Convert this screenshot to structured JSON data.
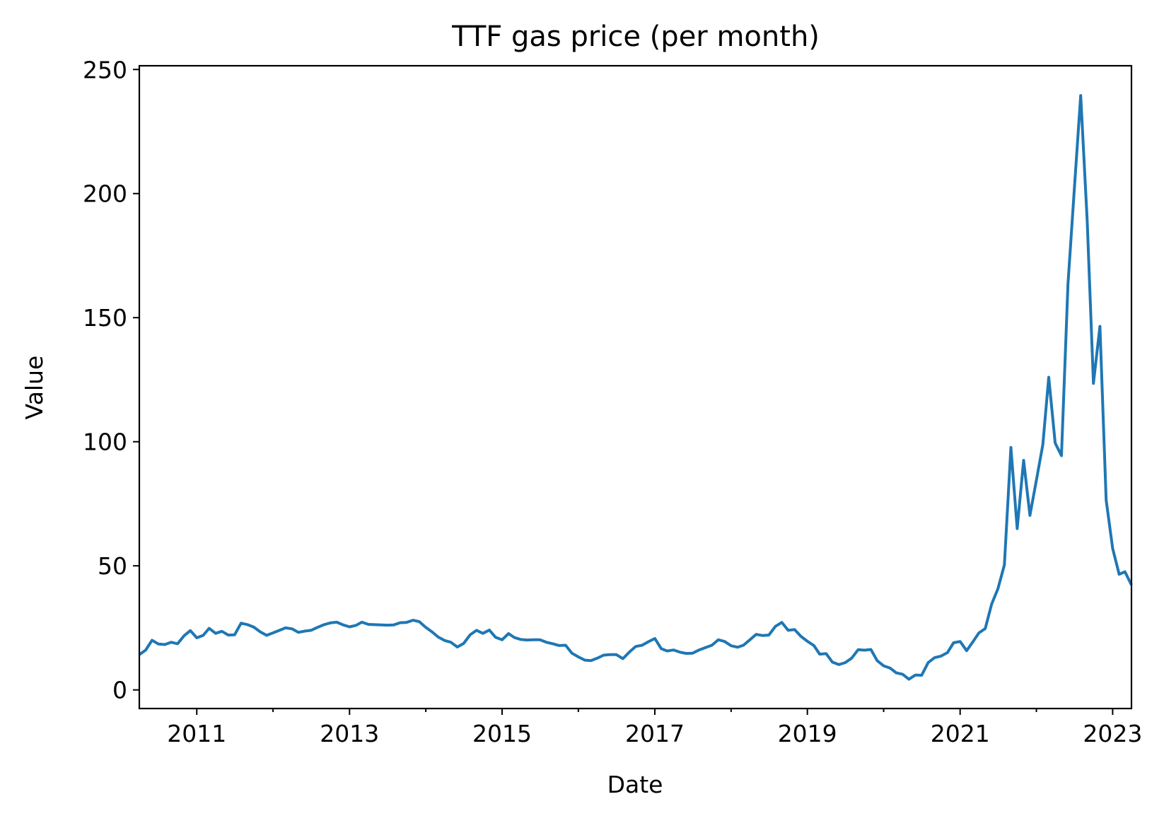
{
  "chart_data": {
    "type": "line",
    "title": "TTF gas price (per month)",
    "xlabel": "Date",
    "ylabel": "Value",
    "ylim": [
      -7.5,
      251.5
    ],
    "xlim": [
      "2010-04-01",
      "2023-04-01"
    ],
    "y_ticks": [
      0,
      50,
      100,
      150,
      200,
      250
    ],
    "x_ticks": [
      "2011",
      "2013",
      "2015",
      "2017",
      "2019",
      "2021",
      "2023"
    ],
    "grid": false,
    "legend": "none",
    "colors": {
      "line": "#1f77b4",
      "axes": "#000000",
      "background": "#ffffff"
    },
    "series": [
      {
        "x": [
          "2010-04-01",
          "2010-05-01",
          "2010-06-01",
          "2010-07-01",
          "2010-08-01",
          "2010-09-01",
          "2010-10-01",
          "2010-11-01",
          "2010-12-01",
          "2011-01-01",
          "2011-02-01",
          "2011-03-01",
          "2011-04-01",
          "2011-05-01",
          "2011-06-01",
          "2011-07-01",
          "2011-08-01",
          "2011-09-01",
          "2011-10-01",
          "2011-11-01",
          "2011-12-01",
          "2012-01-01",
          "2012-02-01",
          "2012-03-01",
          "2012-04-01",
          "2012-05-01",
          "2012-06-01",
          "2012-07-01",
          "2012-08-01",
          "2012-09-01",
          "2012-10-01",
          "2012-11-01",
          "2012-12-01",
          "2013-01-01",
          "2013-02-01",
          "2013-03-01",
          "2013-04-01",
          "2013-05-01",
          "2013-06-01",
          "2013-07-01",
          "2013-08-01",
          "2013-09-01",
          "2013-10-01",
          "2013-11-01",
          "2013-12-01",
          "2014-01-01",
          "2014-02-01",
          "2014-03-01",
          "2014-04-01",
          "2014-05-01",
          "2014-06-01",
          "2014-07-01",
          "2014-08-01",
          "2014-09-01",
          "2014-10-01",
          "2014-11-01",
          "2014-12-01",
          "2015-01-01",
          "2015-02-01",
          "2015-03-01",
          "2015-04-01",
          "2015-05-01",
          "2015-06-01",
          "2015-07-01",
          "2015-08-01",
          "2015-09-01",
          "2015-10-01",
          "2015-11-01",
          "2015-12-01",
          "2016-01-01",
          "2016-02-01",
          "2016-03-01",
          "2016-04-01",
          "2016-05-01",
          "2016-06-01",
          "2016-07-01",
          "2016-08-01",
          "2016-09-01",
          "2016-10-01",
          "2016-11-01",
          "2016-12-01",
          "2017-01-01",
          "2017-02-01",
          "2017-03-01",
          "2017-04-01",
          "2017-05-01",
          "2017-06-01",
          "2017-07-01",
          "2017-08-01",
          "2017-09-01",
          "2017-10-01",
          "2017-11-01",
          "2017-12-01",
          "2018-01-01",
          "2018-02-01",
          "2018-03-01",
          "2018-04-01",
          "2018-05-01",
          "2018-06-01",
          "2018-07-01",
          "2018-08-01",
          "2018-09-01",
          "2018-10-01",
          "2018-11-01",
          "2018-12-01",
          "2019-01-01",
          "2019-02-01",
          "2019-03-01",
          "2019-04-01",
          "2019-05-01",
          "2019-06-01",
          "2019-07-01",
          "2019-08-01",
          "2019-09-01",
          "2019-10-01",
          "2019-11-01",
          "2019-12-01",
          "2020-01-01",
          "2020-02-01",
          "2020-03-01",
          "2020-04-01",
          "2020-05-01",
          "2020-06-01",
          "2020-07-01",
          "2020-08-01",
          "2020-09-01",
          "2020-10-01",
          "2020-11-01",
          "2020-12-01",
          "2021-01-01",
          "2021-02-01",
          "2021-03-01",
          "2021-04-01",
          "2021-05-01",
          "2021-06-01",
          "2021-07-01",
          "2021-08-01",
          "2021-09-01",
          "2021-10-01",
          "2021-11-01",
          "2021-12-01",
          "2022-01-01",
          "2022-02-01",
          "2022-03-01",
          "2022-04-01",
          "2022-05-01",
          "2022-06-01",
          "2022-07-01",
          "2022-08-01",
          "2022-09-01",
          "2022-10-01",
          "2022-11-01",
          "2022-12-01",
          "2023-01-01",
          "2023-02-01",
          "2023-03-01",
          "2023-04-01"
        ],
        "y": [
          14.2,
          16.0,
          20.0,
          18.5,
          18.3,
          19.2,
          18.6,
          21.8,
          23.9,
          21.0,
          22.0,
          24.8,
          22.8,
          23.6,
          22.1,
          22.2,
          26.9,
          26.3,
          25.3,
          23.4,
          22.0,
          23.0,
          24.0,
          25.0,
          24.6,
          23.2,
          23.7,
          24.0,
          25.2,
          26.3,
          27.0,
          27.3,
          26.2,
          25.4,
          26.0,
          27.3,
          26.4,
          26.3,
          26.2,
          26.1,
          26.2,
          27.1,
          27.2,
          28.1,
          27.5,
          25.2,
          23.3,
          21.3,
          19.9,
          19.2,
          17.3,
          18.7,
          22.2,
          24.0,
          22.8,
          24.1,
          21.2,
          20.2,
          22.7,
          21.1,
          20.3,
          20.1,
          20.2,
          20.2,
          19.2,
          18.6,
          17.9,
          18.0,
          14.8,
          13.3,
          12.0,
          11.8,
          12.8,
          14.0,
          14.2,
          14.2,
          12.6,
          15.2,
          17.5,
          18.0,
          19.4,
          20.7,
          16.6,
          15.7,
          16.1,
          15.2,
          14.7,
          14.8,
          16.1,
          17.1,
          18.0,
          20.2,
          19.5,
          17.8,
          17.2,
          18.0,
          20.2,
          22.4,
          21.9,
          22.1,
          25.6,
          27.2,
          24.0,
          24.3,
          21.6,
          19.6,
          17.9,
          14.4,
          14.6,
          11.2,
          10.2,
          11.0,
          12.8,
          16.2,
          16.0,
          16.3,
          11.8,
          9.7,
          8.8,
          6.9,
          6.3,
          4.3,
          6.0,
          5.9,
          11.0,
          13.0,
          13.6,
          15.0,
          19.0,
          19.5,
          15.8,
          19.1,
          23.0,
          24.7,
          34.6,
          40.8,
          50.4,
          97.7,
          65.0,
          92.5,
          70.3,
          84.6,
          98.9,
          126.0,
          99.5,
          94.4,
          163.5,
          201.0,
          239.5,
          189.0,
          123.5,
          146.5,
          76.5,
          57.0,
          46.6,
          47.6,
          42.3
        ]
      }
    ]
  }
}
